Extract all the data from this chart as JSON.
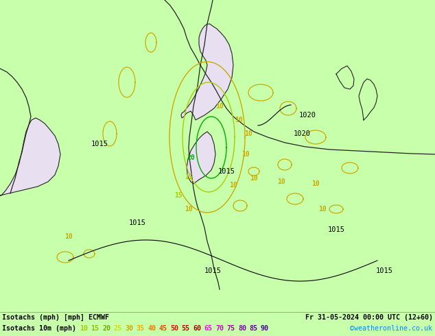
{
  "title_left": "Isotachs (mph) [mph] ECMWF",
  "title_right": "Fr 31-05-2024 00:00 UTC (12+60)",
  "legend_label": "Isotachs 10m (mph)",
  "watermark": "©weatheronline.co.uk",
  "legend_values": [
    10,
    15,
    20,
    25,
    30,
    35,
    40,
    45,
    50,
    55,
    60,
    65,
    70,
    75,
    80,
    85,
    90
  ],
  "val_colors": [
    "#aacc00",
    "#99bb00",
    "#77aa00",
    "#dddd00",
    "#ccaa00",
    "#ffaa00",
    "#ff7700",
    "#ff4400",
    "#ff0000",
    "#cc0000",
    "#aa0000",
    "#ff00ff",
    "#cc00cc",
    "#aa00aa",
    "#8800bb",
    "#6600aa",
    "#440099"
  ],
  "bg_color": "#c8ffaa",
  "map_bg": "#c8ffaa",
  "sea_color": "#c8ffaa",
  "land_color": "#c8ffaa",
  "low_wind_fill": "#e8e0f0",
  "contour_color_10": "#ccaa00",
  "contour_color_15": "#aacc00",
  "contour_color_20": "#009900",
  "pressure_color": "#000000",
  "coast_color": "#222222",
  "bottom_text_color": "#000000",
  "watermark_color": "#0088ff",
  "fig_width": 6.34,
  "fig_height": 4.9,
  "dpi": 100
}
